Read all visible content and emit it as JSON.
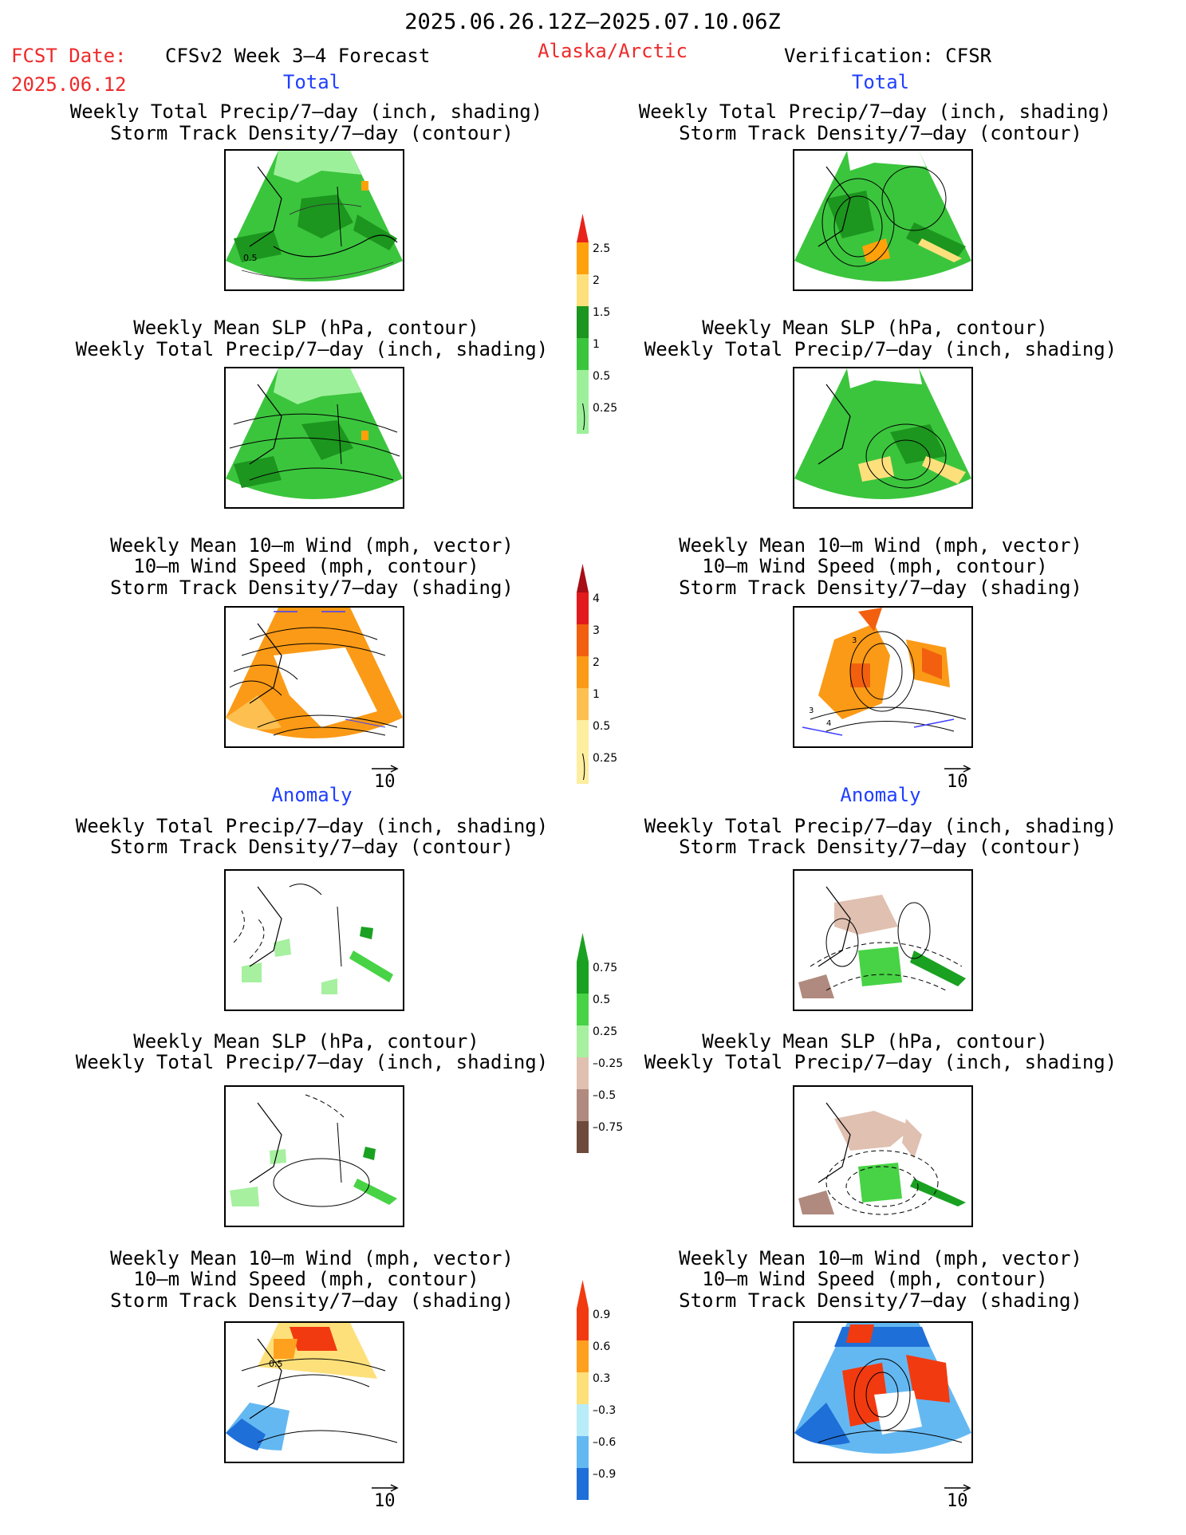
{
  "header": {
    "date_range": "2025.06.26.12Z–2025.07.10.06Z",
    "fcst_label": "FCST Date:",
    "fcst_date": "2025.06.12",
    "model": "CFSv2 Week 3–4 Forecast",
    "region": "Alaska/Arctic",
    "verification": "Verification: CFSR"
  },
  "sections": {
    "total": "Total",
    "anomaly": "Anomaly"
  },
  "titles": {
    "precip_track": [
      "Weekly Total Precip/7–day (inch, shading)",
      "Storm Track Density/7–day (contour)"
    ],
    "slp_precip": [
      "Weekly Mean SLP (hPa, contour)",
      "Weekly Total Precip/7–day (inch, shading)"
    ],
    "wind_track": [
      "Weekly Mean 10–m Wind (mph, vector)",
      "10–m Wind Speed (mph, contour)",
      "Storm Track Density/7–day (shading)"
    ]
  },
  "vector_ref": "10",
  "panel_labels": {
    "fc_total_precip": "0.5",
    "fc_anom_wind": "0.5",
    "obs_total_wind_a": "3",
    "obs_total_wind_b": "3",
    "obs_total_wind_c": "4"
  },
  "colorbars": {
    "precip_total": {
      "labels": [
        "2.5",
        "2",
        "1.5",
        "1",
        "0.5",
        "0.25"
      ],
      "colors": [
        "#e8231a",
        "#ffa10a",
        "#fde07c",
        "#1c961e",
        "#3bc53d",
        "#9df09a"
      ]
    },
    "track_total": {
      "labels": [
        "4",
        "3",
        "2",
        "1",
        "0.5",
        "0.25"
      ],
      "colors": [
        "#a50f15",
        "#e31a1c",
        "#f2600f",
        "#fb9a16",
        "#fdc050",
        "#fdeea0"
      ]
    },
    "precip_anom": {
      "labels": [
        "0.75",
        "0.5",
        "0.25",
        "–0.25",
        "–0.5",
        "–0.75"
      ],
      "colors": [
        "#1aa121",
        "#47d345",
        "#a6f0a0",
        "#e0c0b0",
        "#b08a7e",
        "#6e4a3c"
      ]
    },
    "track_anom": {
      "labels": [
        "0.9",
        "0.6",
        "0.3",
        "–0.3",
        "–0.6",
        "–0.9"
      ],
      "colors": [
        "#f23a10",
        "#ffa01e",
        "#fde07a",
        "#b8ecf8",
        "#64b8f2",
        "#1f6fd8"
      ]
    }
  }
}
